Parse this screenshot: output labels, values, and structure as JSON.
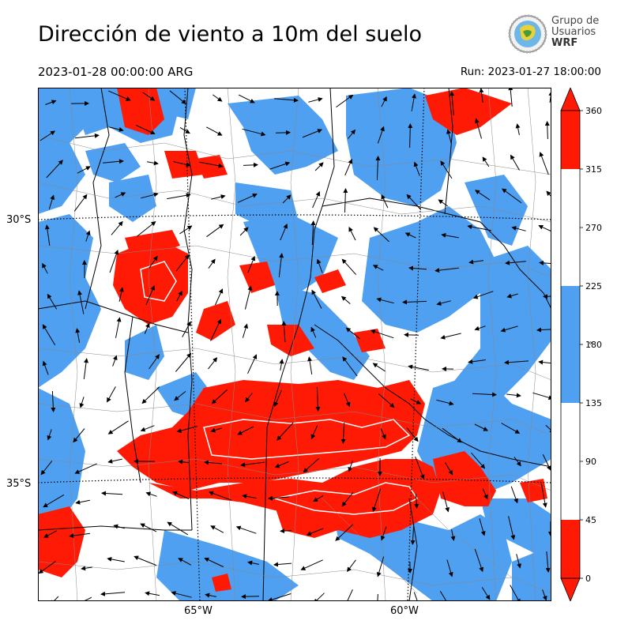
{
  "title": "Dirección de viento a 10m del suelo",
  "valid_time": "2023-01-28 00:00:00 ARG",
  "run_time": "Run: 2023-01-27 18:00:00",
  "logo": {
    "line1": "Grupo de",
    "line2": "Usuarios",
    "line3": "WRF"
  },
  "axes": {
    "lat_labels": [
      "30°S",
      "35°S"
    ],
    "lon_labels": [
      "65°W",
      "60°W"
    ]
  },
  "colorbar": {
    "ticks": [
      "360",
      "315",
      "270",
      "225",
      "180",
      "135",
      "90",
      "45",
      "0"
    ],
    "unit": "°",
    "bands": [
      {
        "from": 0,
        "to": 45,
        "color": "#ff1a05"
      },
      {
        "from": 45,
        "to": 135,
        "color": "#ffffff"
      },
      {
        "from": 135,
        "to": 225,
        "color": "#4fa0f0"
      },
      {
        "from": 225,
        "to": 315,
        "color": "#ffffff"
      },
      {
        "from": 315,
        "to": 360,
        "color": "#ff1a05"
      }
    ]
  },
  "colors": {
    "red": "#ff1a05",
    "blue": "#4fa0f0",
    "white": "#ffffff"
  }
}
